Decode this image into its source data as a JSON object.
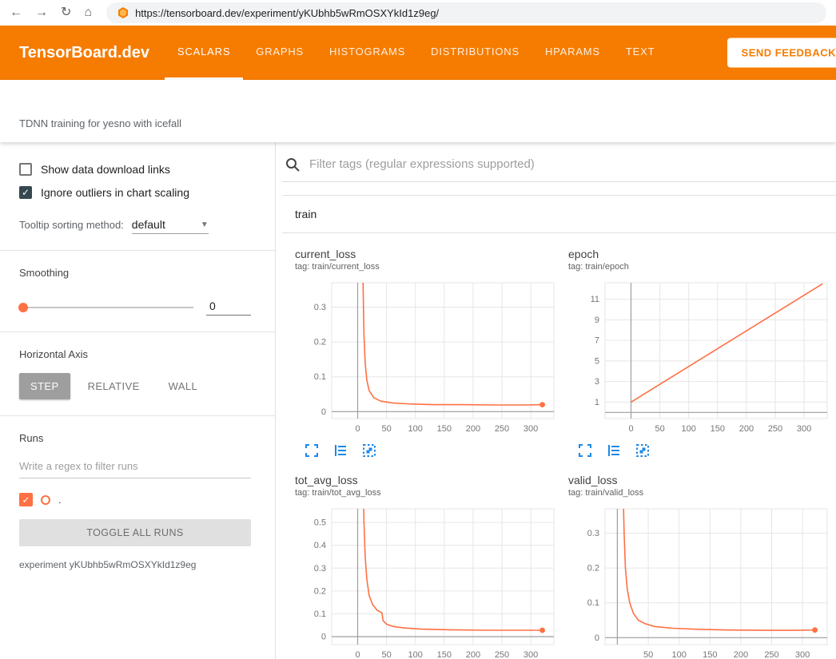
{
  "colors": {
    "accent": "#f57c00",
    "run_color": "#ff7043",
    "icon_blue": "#1e88e5"
  },
  "browser": {
    "url": "https://tensorboard.dev/experiment/yKUbhb5wRmOSXYkId1z9eg/",
    "back_icon": "←",
    "forward_icon": "→",
    "refresh_icon": "↻",
    "home_icon": "⌂"
  },
  "header": {
    "title": "TensorBoard.dev",
    "tabs": [
      {
        "label": "SCALARS",
        "active": true
      },
      {
        "label": "GRAPHS",
        "active": false
      },
      {
        "label": "HISTOGRAMS",
        "active": false
      },
      {
        "label": "DISTRIBUTIONS",
        "active": false
      },
      {
        "label": "HPARAMS",
        "active": false
      },
      {
        "label": "TEXT",
        "active": false
      }
    ],
    "feedback_button": "SEND FEEDBACK"
  },
  "subheader": {
    "experiment_title": "TDNN training for yesno with icefall"
  },
  "sidebar": {
    "show_download_label": "Show data download links",
    "ignore_outliers_label": "Ignore outliers in chart scaling",
    "tooltip_sorting_label": "Tooltip sorting method:",
    "tooltip_sorting_value": "default",
    "smoothing_label": "Smoothing",
    "smoothing_value": "0",
    "horizontal_axis_label": "Horizontal Axis",
    "axis_options": [
      {
        "label": "STEP",
        "active": true
      },
      {
        "label": "RELATIVE",
        "active": false
      },
      {
        "label": "WALL",
        "active": false
      }
    ],
    "runs_label": "Runs",
    "runs_filter_placeholder": "Write a regex to filter runs",
    "run_item": {
      "name": "."
    },
    "toggle_all_label": "TOGGLE ALL RUNS",
    "experiment_caption": "experiment yKUbhb5wRmOSXYkId1z9eg"
  },
  "main": {
    "filter_placeholder": "Filter tags (regular expressions supported)",
    "section_title": "train"
  },
  "chart_data": [
    {
      "type": "line",
      "title": "current_loss",
      "tag": "tag: train/current_loss",
      "legend_position": "none",
      "grid": true,
      "x_ticks": [
        0,
        50,
        100,
        150,
        200,
        250,
        300
      ],
      "y_ticks": [
        0,
        0.1,
        0.2,
        0.3
      ],
      "xlim": [
        -45,
        340
      ],
      "ylim": [
        -0.02,
        0.37
      ],
      "end_dot": true,
      "series": [
        {
          "name": ".",
          "points": [
            [
              7,
              0.9
            ],
            [
              9,
              0.4
            ],
            [
              11,
              0.22
            ],
            [
              13,
              0.14
            ],
            [
              16,
              0.09
            ],
            [
              20,
              0.06
            ],
            [
              28,
              0.04
            ],
            [
              40,
              0.03
            ],
            [
              60,
              0.025
            ],
            [
              90,
              0.022
            ],
            [
              130,
              0.02
            ],
            [
              180,
              0.02
            ],
            [
              240,
              0.019
            ],
            [
              290,
              0.019
            ],
            [
              320,
              0.02
            ]
          ]
        }
      ]
    },
    {
      "type": "line",
      "title": "epoch",
      "tag": "tag: train/epoch",
      "legend_position": "none",
      "grid": true,
      "x_ticks": [
        0,
        50,
        100,
        150,
        200,
        250,
        300
      ],
      "y_ticks": [
        1,
        3,
        5,
        7,
        9,
        11
      ],
      "xlim": [
        -45,
        340
      ],
      "ylim": [
        -0.6,
        12.6
      ],
      "end_dot": false,
      "series": [
        {
          "name": ".",
          "points": [
            [
              0,
              1
            ],
            [
              332,
              12.5
            ]
          ]
        }
      ]
    },
    {
      "type": "line",
      "title": "tot_avg_loss",
      "tag": "tag: train/tot_avg_loss",
      "legend_position": "none",
      "grid": true,
      "x_ticks": [
        0,
        50,
        100,
        150,
        200,
        250,
        300
      ],
      "y_ticks": [
        0,
        0.1,
        0.2,
        0.3,
        0.4,
        0.5
      ],
      "xlim": [
        -45,
        340
      ],
      "ylim": [
        -0.035,
        0.56
      ],
      "end_dot": true,
      "series": [
        {
          "name": ".",
          "points": [
            [
              7,
              1.4
            ],
            [
              9,
              0.8
            ],
            [
              11,
              0.5
            ],
            [
              13,
              0.35
            ],
            [
              16,
              0.25
            ],
            [
              20,
              0.18
            ],
            [
              26,
              0.14
            ],
            [
              34,
              0.115
            ],
            [
              42,
              0.105
            ],
            [
              44,
              0.07
            ],
            [
              50,
              0.055
            ],
            [
              60,
              0.045
            ],
            [
              80,
              0.038
            ],
            [
              110,
              0.033
            ],
            [
              160,
              0.03
            ],
            [
              220,
              0.028
            ],
            [
              280,
              0.028
            ],
            [
              320,
              0.028
            ]
          ]
        }
      ]
    },
    {
      "type": "line",
      "title": "valid_loss",
      "tag": "tag: train/valid_loss",
      "legend_position": "none",
      "grid": true,
      "x_ticks": [
        50,
        100,
        150,
        200,
        250,
        300
      ],
      "y_ticks": [
        0,
        0.1,
        0.2,
        0.3
      ],
      "xlim": [
        -20,
        340
      ],
      "ylim": [
        -0.02,
        0.37
      ],
      "end_dot": true,
      "series": [
        {
          "name": ".",
          "points": [
            [
              7,
              0.8
            ],
            [
              9,
              0.45
            ],
            [
              11,
              0.3
            ],
            [
              13,
              0.2
            ],
            [
              16,
              0.14
            ],
            [
              20,
              0.1
            ],
            [
              26,
              0.07
            ],
            [
              34,
              0.05
            ],
            [
              45,
              0.04
            ],
            [
              60,
              0.032
            ],
            [
              90,
              0.027
            ],
            [
              130,
              0.024
            ],
            [
              180,
              0.022
            ],
            [
              240,
              0.021
            ],
            [
              290,
              0.021
            ],
            [
              320,
              0.022
            ]
          ]
        }
      ]
    }
  ]
}
